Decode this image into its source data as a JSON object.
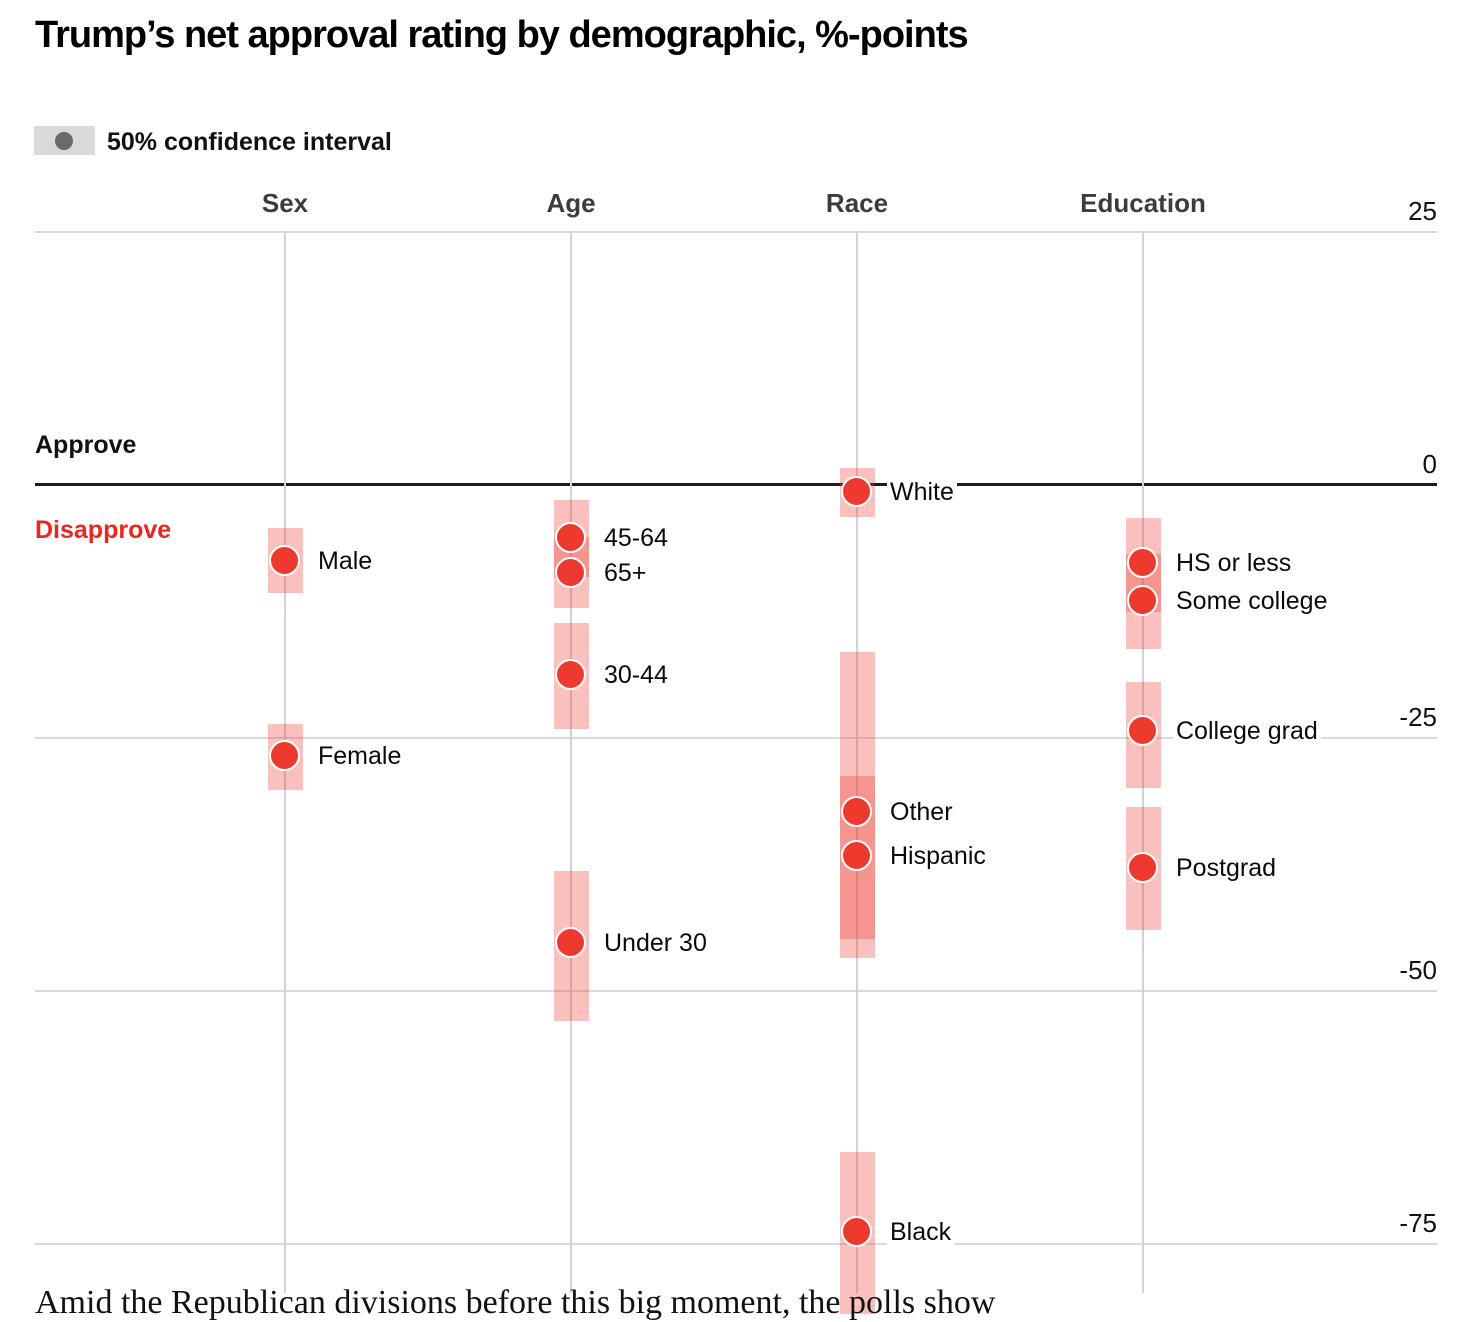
{
  "header": {
    "title": "Trump’s net approval rating by demographic, %-points",
    "legend_label": "50% confidence interval"
  },
  "colors": {
    "dot_red": "#ee392f",
    "band_pink": "rgba(238,60,51,0.32)",
    "disapprove_red": "#e8271e",
    "legend_box_gray": "#d9d9d9",
    "legend_dot_gray": "#6a6a6a",
    "grid_gray": "#d7d7d7",
    "zero_line": "#1c1c1c"
  },
  "chart_data": {
    "type": "scatter",
    "title": "Trump’s net approval rating by demographic, %-points",
    "legend": "50% confidence interval",
    "units": "percentage points of net approval (approve minus disapprove)",
    "y_ticks": [
      25,
      0,
      -25,
      -50,
      -75
    ],
    "ylim": [
      25,
      -82
    ],
    "grid": "on",
    "zero_annotations": {
      "above": "Approve",
      "below": "Disapprove"
    },
    "groups": [
      {
        "name": "Sex",
        "points": [
          {
            "label": "Male",
            "value": -7.6,
            "ci50": [
              -4.3,
              -10.8
            ]
          },
          {
            "label": "Female",
            "value": -26.9,
            "ci50": [
              -23.7,
              -30.2
            ]
          }
        ]
      },
      {
        "name": "Age",
        "points": [
          {
            "label": "45-64",
            "value": -5.3,
            "ci50": [
              -1.6,
              -9.2
            ]
          },
          {
            "label": "65+",
            "value": -8.8,
            "ci50": [
              -5.2,
              -12.3
            ]
          },
          {
            "label": "30-44",
            "value": -18.9,
            "ci50": [
              -13.7,
              -24.2
            ]
          },
          {
            "label": "Under 30",
            "value": -45.4,
            "ci50": [
              -38.2,
              -53.1
            ]
          }
        ]
      },
      {
        "name": "Race",
        "points": [
          {
            "label": "White",
            "value": -0.8,
            "ci50": [
              1.6,
              -3.3
            ]
          },
          {
            "label": "Other",
            "value": -32.4,
            "ci50": [
              -16.6,
              -45.0
            ]
          },
          {
            "label": "Hispanic",
            "value": -36.8,
            "ci50": [
              -28.9,
              -46.8
            ]
          },
          {
            "label": "Black",
            "value": -73.9,
            "ci50": [
              -66.0,
              -82.0
            ]
          }
        ]
      },
      {
        "name": "Education",
        "points": [
          {
            "label": "HS or less",
            "value": -7.8,
            "ci50": [
              -3.4,
              -12.6
            ]
          },
          {
            "label": "Some college",
            "value": -11.6,
            "ci50": [
              -6.9,
              -16.3
            ]
          },
          {
            "label": "College grad",
            "value": -24.4,
            "ci50": [
              -19.6,
              -30.0
            ]
          },
          {
            "label": "Postgrad",
            "value": -37.9,
            "ci50": [
              -31.9,
              -44.1
            ]
          }
        ]
      }
    ],
    "caption_clipped": "Amid the Republican divisions before this big moment, the polls show"
  }
}
